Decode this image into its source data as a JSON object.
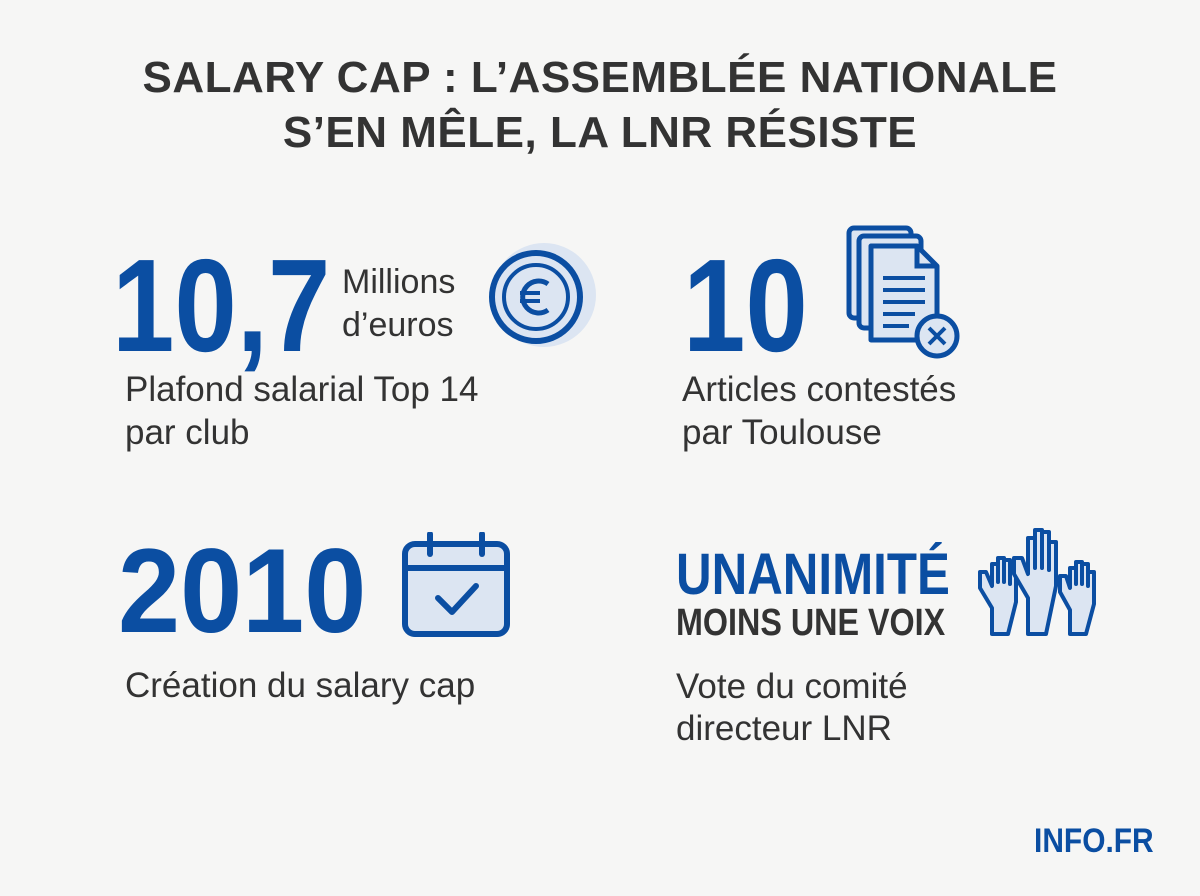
{
  "header": {
    "title_lines": [
      "SALARY CAP : L’ASSEMBLÉE NATIONALE",
      "S’EN MÊLE, LA LNR RÉSISTE"
    ]
  },
  "stats": [
    {
      "figure": "10,7",
      "unit_lines": [
        "Millions",
        "d’euros"
      ],
      "caption_lines": [
        "Plafond salarial Top 14",
        "par club"
      ]
    },
    {
      "figure": "10",
      "caption_lines": [
        "Articles contestés",
        "par Toulouse"
      ]
    },
    {
      "figure": "2010",
      "caption_lines": [
        "Création du salary cap"
      ]
    },
    {
      "figure_lines": [
        "UNANIMITÉ",
        "MOINS UNE VOIX"
      ],
      "caption_lines": [
        "Vote du comité",
        "directeur LNR"
      ]
    }
  ],
  "footer": {
    "brand": "INFO.FR"
  }
}
